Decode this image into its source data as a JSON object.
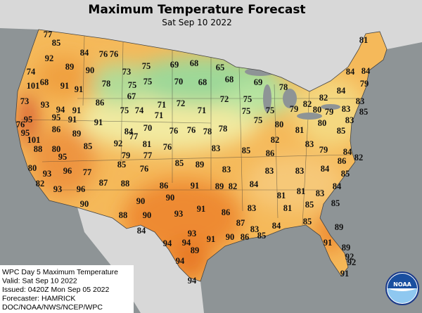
{
  "header": {
    "title": "Maximum Temperature Forecast",
    "subtitle": "Sat Sep 10 2022"
  },
  "labels": [
    77,
    85,
    84,
    76,
    76,
    92,
    89,
    90,
    73,
    75,
    69,
    68,
    65,
    81,
    74,
    68,
    101,
    91,
    91,
    78,
    75,
    75,
    70,
    68,
    68,
    69,
    78,
    84,
    84,
    79,
    84,
    82,
    82,
    73,
    93,
    94,
    91,
    86,
    67,
    75,
    74,
    71,
    72,
    71,
    71,
    72,
    75,
    75,
    79,
    80,
    79,
    83,
    83,
    85,
    75,
    76,
    95,
    95,
    95,
    91,
    91,
    84,
    70,
    76,
    76,
    78,
    78,
    75,
    80,
    81,
    80,
    85,
    83,
    101,
    86,
    89,
    85,
    92,
    77,
    81,
    76,
    83,
    85,
    86,
    82,
    83,
    79,
    84,
    88,
    80,
    95,
    79,
    77,
    85,
    76,
    85,
    89,
    83,
    83,
    83,
    84,
    86,
    82,
    80,
    93,
    96,
    77,
    82,
    93,
    96,
    87,
    88,
    86,
    91,
    89,
    82,
    84,
    81,
    81,
    83,
    84,
    85,
    90,
    90,
    90,
    90,
    93,
    91,
    86,
    83,
    81,
    85,
    85,
    88,
    84,
    87,
    83,
    84,
    85,
    89,
    93,
    91,
    90,
    86,
    85,
    94,
    94,
    89,
    91,
    89,
    92,
    92,
    94,
    94,
    91
  ],
  "footer": {
    "lines": [
      "WPC Day 5 Maximum Temperature",
      "Valid: Sat Sep 10 2022",
      "Issued: 0420Z Mon Sep 05 2022",
      "Forecaster: HAMRICK",
      "DOC/NOAA/NWS/NCEP/WPC"
    ]
  },
  "logo": "NOAA"
}
